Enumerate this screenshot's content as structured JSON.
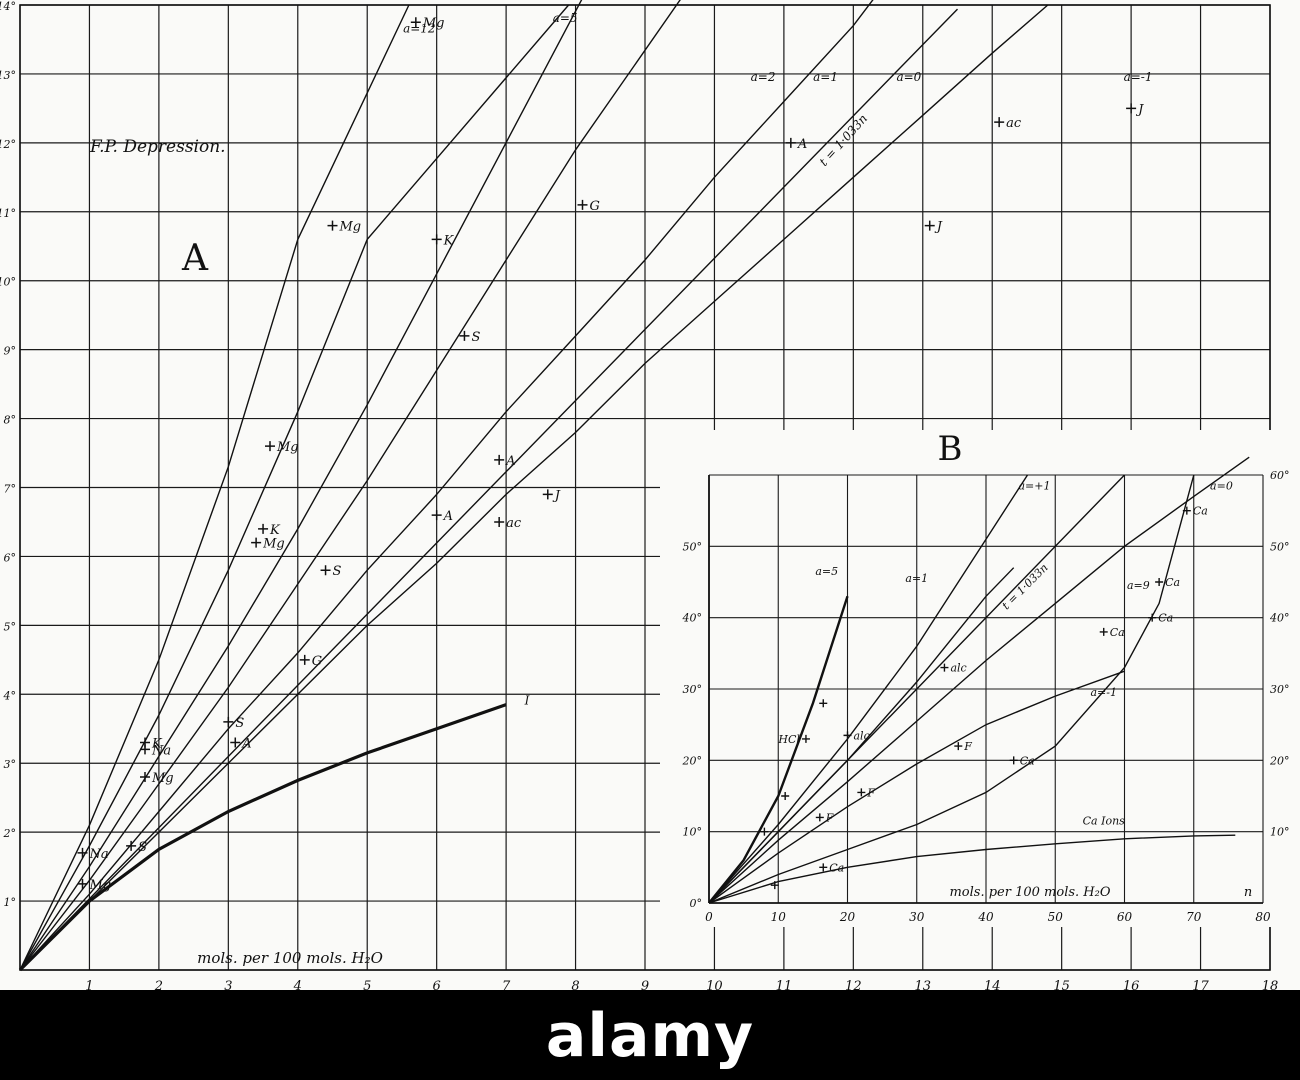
{
  "colors": {
    "ink": "#111111",
    "paper": "#fafaf8",
    "grid": "#1a1a1a",
    "banner": "#000000",
    "banner_text": "#ffffff"
  },
  "watermark": {
    "text": "alamy"
  },
  "chart_data": [
    {
      "type": "line",
      "panel_label": "A",
      "title": "F.P. Depression.",
      "xlabel": "mols. per 100 mols. H₂O",
      "ylabel": "",
      "xlim": [
        0,
        18
      ],
      "ylim": [
        0,
        14
      ],
      "x_ticks": [
        "1",
        "2",
        "3",
        "4",
        "5",
        "6",
        "7",
        "8",
        "9",
        "10",
        "11",
        "12",
        "13",
        "14",
        "15",
        "16",
        "17",
        "18"
      ],
      "y_ticks": [
        "1°",
        "2°",
        "3°",
        "4°",
        "5°",
        "6°",
        "7°",
        "8°",
        "9°",
        "10°",
        "11°",
        "12°",
        "13°",
        "14°"
      ],
      "grid": true,
      "series": [
        {
          "name": "a=12",
          "points": [
            [
              0,
              0
            ],
            [
              1,
              2.1
            ],
            [
              2,
              4.5
            ],
            [
              3,
              7.3
            ],
            [
              4,
              10.6
            ],
            [
              5.6,
              14
            ]
          ]
        },
        {
          "name": "a=5",
          "points": [
            [
              0,
              0
            ],
            [
              1,
              1.8
            ],
            [
              2,
              3.7
            ],
            [
              3,
              5.8
            ],
            [
              4,
              8.1
            ],
            [
              5,
              10.6
            ],
            [
              7.9,
              14
            ]
          ]
        },
        {
          "name": "a=2",
          "points": [
            [
              0,
              0
            ],
            [
              1,
              1.5
            ],
            [
              2,
              3.1
            ],
            [
              3,
              4.7
            ],
            [
              4,
              6.4
            ],
            [
              5,
              8.2
            ],
            [
              6,
              10.1
            ],
            [
              8.1,
              14.1
            ]
          ]
        },
        {
          "name": "a=1",
          "points": [
            [
              0,
              0
            ],
            [
              1,
              1.3
            ],
            [
              2,
              2.7
            ],
            [
              3,
              4.1
            ],
            [
              4,
              5.6
            ],
            [
              5,
              7.1
            ],
            [
              6,
              8.7
            ],
            [
              7,
              10.3
            ],
            [
              8,
              11.9
            ],
            [
              9.8,
              14.5
            ]
          ]
        },
        {
          "name": "t = 1·033n",
          "points": [
            [
              0,
              0
            ],
            [
              13.5,
              13.94
            ]
          ]
        },
        {
          "name": "a=0",
          "points": [
            [
              0,
              0
            ],
            [
              1,
              1.1
            ],
            [
              2,
              2.3
            ],
            [
              3,
              3.5
            ],
            [
              4,
              4.6
            ],
            [
              5,
              5.8
            ],
            [
              6,
              6.9
            ],
            [
              7,
              8.1
            ],
            [
              8,
              9.2
            ],
            [
              9,
              10.3
            ],
            [
              10,
              11.5
            ],
            [
              11,
              12.6
            ],
            [
              12,
              13.7
            ],
            [
              12.3,
              14.1
            ]
          ]
        },
        {
          "name": "a=-1",
          "points": [
            [
              0,
              0
            ],
            [
              1,
              1.0
            ],
            [
              2,
              2.0
            ],
            [
              3,
              3.0
            ],
            [
              4,
              4.0
            ],
            [
              5,
              5.0
            ],
            [
              6,
              5.9
            ],
            [
              7,
              6.9
            ],
            [
              8,
              7.8
            ],
            [
              9,
              8.8
            ],
            [
              10,
              9.7
            ],
            [
              11,
              10.6
            ],
            [
              12,
              11.5
            ],
            [
              13,
              12.4
            ],
            [
              14,
              13.3
            ],
            [
              14.8,
              14
            ]
          ]
        },
        {
          "name": "I",
          "points": [
            [
              0,
              0
            ],
            [
              1,
              1.0
            ],
            [
              2,
              1.75
            ],
            [
              3,
              2.3
            ],
            [
              4,
              2.75
            ],
            [
              5,
              3.15
            ],
            [
              6,
              3.5
            ],
            [
              7,
              3.85
            ]
          ]
        }
      ],
      "markers": [
        {
          "label": "Mg",
          "x": 5.7,
          "y": 13.75
        },
        {
          "label": "Mg",
          "x": 4.5,
          "y": 10.8
        },
        {
          "label": "K",
          "x": 6.0,
          "y": 10.6
        },
        {
          "label": "G",
          "x": 8.1,
          "y": 11.1
        },
        {
          "label": "A",
          "x": 11.1,
          "y": 12.0
        },
        {
          "label": "ac",
          "x": 14.1,
          "y": 12.3
        },
        {
          "label": "J",
          "x": 16.0,
          "y": 12.5
        },
        {
          "label": "J",
          "x": 13.1,
          "y": 10.8
        },
        {
          "label": "S",
          "x": 6.4,
          "y": 9.2
        },
        {
          "label": "Mg",
          "x": 3.6,
          "y": 7.6
        },
        {
          "label": "A",
          "x": 6.9,
          "y": 7.4
        },
        {
          "label": "J",
          "x": 7.6,
          "y": 6.9
        },
        {
          "label": "A",
          "x": 6.0,
          "y": 6.6
        },
        {
          "label": "ac",
          "x": 6.9,
          "y": 6.5
        },
        {
          "label": "K",
          "x": 3.5,
          "y": 6.4
        },
        {
          "label": "Mg",
          "x": 3.4,
          "y": 6.2
        },
        {
          "label": "S",
          "x": 4.4,
          "y": 5.8
        },
        {
          "label": "G",
          "x": 4.1,
          "y": 4.5
        },
        {
          "label": "S",
          "x": 3.0,
          "y": 3.6
        },
        {
          "label": "A",
          "x": 3.1,
          "y": 3.3
        },
        {
          "label": "K",
          "x": 1.8,
          "y": 3.3
        },
        {
          "label": "Na",
          "x": 1.8,
          "y": 3.2
        },
        {
          "label": "Mg",
          "x": 1.8,
          "y": 2.8
        },
        {
          "label": "S",
          "x": 1.6,
          "y": 1.8
        },
        {
          "label": "Na",
          "x": 0.9,
          "y": 1.7
        },
        {
          "label": "Mg",
          "x": 0.9,
          "y": 1.25
        }
      ]
    },
    {
      "type": "line",
      "panel_label": "B",
      "xlabel": "mols. per 100 mols. H₂O",
      "x_end_label": "n",
      "xlim": [
        0,
        80
      ],
      "ylim": [
        0,
        60
      ],
      "x_ticks": [
        "0",
        "10",
        "20",
        "30",
        "40",
        "50",
        "60",
        "70",
        "80"
      ],
      "y_ticks_left": [
        "0°",
        "10°",
        "20°",
        "30°",
        "40°",
        "50°"
      ],
      "y_ticks_right": [
        "10°",
        "20°",
        "30°",
        "40°",
        "50°",
        "60°"
      ],
      "grid": true,
      "series": [
        {
          "name": "a=5",
          "points": [
            [
              0,
              0
            ],
            [
              5,
              6
            ],
            [
              10,
              15
            ],
            [
              15,
              28
            ],
            [
              20,
              43
            ]
          ]
        },
        {
          "name": "a=+1",
          "points": [
            [
              0,
              0
            ],
            [
              10,
              11
            ],
            [
              20,
              23
            ],
            [
              30,
              36
            ],
            [
              40,
              51
            ],
            [
              46,
              60
            ]
          ]
        },
        {
          "name": "a=1",
          "points": [
            [
              0,
              0
            ],
            [
              10,
              10
            ],
            [
              20,
              20
            ],
            [
              30,
              31
            ],
            [
              40,
              43
            ],
            [
              44,
              47
            ]
          ]
        },
        {
          "name": "t = 1·033n",
          "points": [
            [
              0,
              0
            ],
            [
              60,
              60
            ]
          ]
        },
        {
          "name": "a=0",
          "points": [
            [
              0,
              0
            ],
            [
              10,
              8.8
            ],
            [
              20,
              17
            ],
            [
              30,
              25.5
            ],
            [
              40,
              34
            ],
            [
              50,
              42
            ],
            [
              60,
              50
            ],
            [
              70,
              57
            ],
            [
              78,
              62.5
            ]
          ]
        },
        {
          "name": "a=-1",
          "points": [
            [
              0,
              0
            ],
            [
              10,
              7
            ],
            [
              20,
              13.5
            ],
            [
              30,
              19.5
            ],
            [
              40,
              25
            ],
            [
              50,
              29
            ],
            [
              60,
              32.5
            ]
          ]
        },
        {
          "name": "a=9",
          "points": [
            [
              0,
              0
            ],
            [
              10,
              4
            ],
            [
              20,
              7.5
            ],
            [
              30,
              11
            ],
            [
              40,
              15.5
            ],
            [
              50,
              22
            ],
            [
              60,
              33
            ],
            [
              65,
              42
            ],
            [
              70,
              60
            ]
          ]
        },
        {
          "name": "Ca Ions",
          "points": [
            [
              0,
              0
            ],
            [
              10,
              3
            ],
            [
              20,
              5
            ],
            [
              30,
              6.5
            ],
            [
              40,
              7.5
            ],
            [
              50,
              8.3
            ],
            [
              60,
              9
            ],
            [
              70,
              9.4
            ],
            [
              76,
              9.5
            ]
          ]
        }
      ],
      "markers": [
        {
          "label": "HCl",
          "x": 14,
          "y": 23
        },
        {
          "label": "",
          "x": 16.5,
          "y": 28
        },
        {
          "label": "",
          "x": 11,
          "y": 15
        },
        {
          "label": "",
          "x": 8,
          "y": 10
        },
        {
          "label": "alc",
          "x": 20,
          "y": 23.5
        },
        {
          "label": "alc",
          "x": 34,
          "y": 33
        },
        {
          "label": "F",
          "x": 36,
          "y": 22
        },
        {
          "label": "F",
          "x": 22,
          "y": 15.5
        },
        {
          "label": "F",
          "x": 16,
          "y": 12
        },
        {
          "label": "Ca",
          "x": 44,
          "y": 20
        },
        {
          "label": "Ca",
          "x": 16.5,
          "y": 5
        },
        {
          "label": "",
          "x": 9.5,
          "y": 2.5
        },
        {
          "label": "Ca",
          "x": 64,
          "y": 40
        },
        {
          "label": "Ca",
          "x": 65,
          "y": 45
        },
        {
          "label": "Ca",
          "x": 57,
          "y": 38
        },
        {
          "label": "Ca",
          "x": 69,
          "y": 55
        }
      ]
    }
  ]
}
